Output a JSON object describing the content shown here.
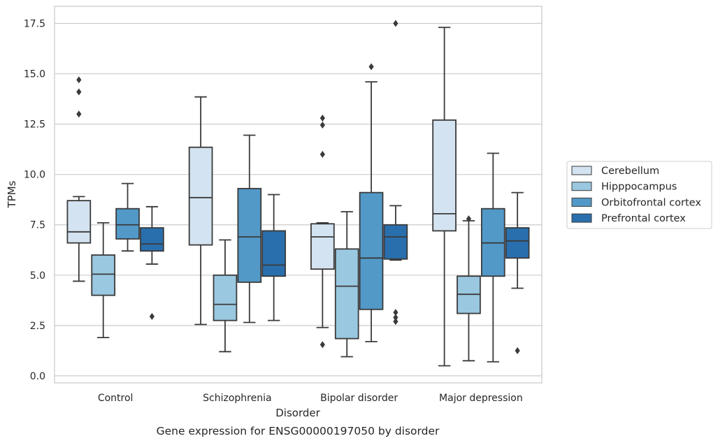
{
  "chart_data": {
    "type": "box",
    "xlabel": "Disorder",
    "ylabel": "TPMs",
    "caption": "Gene expression for ENSG00000197050 by disorder",
    "categories": [
      "Control",
      "Schizophrenia",
      "Bipolar disorder",
      "Major depression"
    ],
    "ylim": [
      -0.35,
      18.35
    ],
    "yticks": [
      0.0,
      2.5,
      5.0,
      7.5,
      10.0,
      12.5,
      15.0,
      17.5
    ],
    "ytick_labels": [
      "0.0",
      "2.5",
      "5.0",
      "7.5",
      "10.0",
      "12.5",
      "15.0",
      "17.5"
    ],
    "grid": "horizontal",
    "legend_placement": "right-outside",
    "series": [
      {
        "name": "Cerebellum",
        "color": "#d4e3f1",
        "boxes": [
          {
            "whislo": 4.7,
            "q1": 6.6,
            "med": 7.15,
            "q3": 8.7,
            "whishi": 8.9,
            "fliers": [
              13.0,
              14.1,
              14.7
            ]
          },
          {
            "whislo": 2.55,
            "q1": 6.5,
            "med": 8.85,
            "q3": 11.35,
            "whishi": 13.85,
            "fliers": []
          },
          {
            "whislo": 2.4,
            "q1": 5.3,
            "med": 6.9,
            "q3": 7.55,
            "whishi": 7.6,
            "fliers": [
              1.55,
              11.0,
              12.45,
              12.8
            ]
          },
          {
            "whislo": 0.5,
            "q1": 7.2,
            "med": 8.05,
            "q3": 12.7,
            "whishi": 17.3,
            "fliers": []
          }
        ]
      },
      {
        "name": "Hipppocampus",
        "color": "#9ac8e0",
        "boxes": [
          {
            "whislo": 1.9,
            "q1": 4.0,
            "med": 5.05,
            "q3": 6.0,
            "whishi": 7.6,
            "fliers": []
          },
          {
            "whislo": 1.2,
            "q1": 2.75,
            "med": 3.55,
            "q3": 5.0,
            "whishi": 6.75,
            "fliers": []
          },
          {
            "whislo": 0.95,
            "q1": 1.85,
            "med": 4.45,
            "q3": 6.3,
            "whishi": 8.15,
            "fliers": []
          },
          {
            "whislo": 0.75,
            "q1": 3.1,
            "med": 4.05,
            "q3": 4.95,
            "whishi": 7.7,
            "fliers": [
              7.8
            ]
          }
        ]
      },
      {
        "name": "Orbitofrontal cortex",
        "color": "#5299c8",
        "boxes": [
          {
            "whislo": 6.2,
            "q1": 6.8,
            "med": 7.5,
            "q3": 8.3,
            "whishi": 9.55,
            "fliers": []
          },
          {
            "whislo": 2.65,
            "q1": 4.65,
            "med": 6.9,
            "q3": 9.3,
            "whishi": 11.95,
            "fliers": []
          },
          {
            "whislo": 1.7,
            "q1": 3.3,
            "med": 5.85,
            "q3": 9.1,
            "whishi": 14.6,
            "fliers": [
              15.35
            ]
          },
          {
            "whislo": 0.7,
            "q1": 4.95,
            "med": 6.6,
            "q3": 8.3,
            "whishi": 11.05,
            "fliers": []
          }
        ]
      },
      {
        "name": "Prefrontal cortex",
        "color": "#2a6fad",
        "boxes": [
          {
            "whislo": 5.55,
            "q1": 6.2,
            "med": 6.55,
            "q3": 7.35,
            "whishi": 8.4,
            "fliers": [
              2.95
            ]
          },
          {
            "whislo": 2.75,
            "q1": 4.95,
            "med": 5.5,
            "q3": 7.2,
            "whishi": 9.0,
            "fliers": []
          },
          {
            "whislo": 5.75,
            "q1": 5.8,
            "med": 6.9,
            "q3": 7.5,
            "whishi": 8.45,
            "fliers": [
              2.7,
              2.9,
              3.15,
              17.5
            ]
          },
          {
            "whislo": 4.35,
            "q1": 5.85,
            "med": 6.7,
            "q3": 7.35,
            "whishi": 9.1,
            "fliers": [
              1.25
            ]
          }
        ]
      }
    ]
  }
}
